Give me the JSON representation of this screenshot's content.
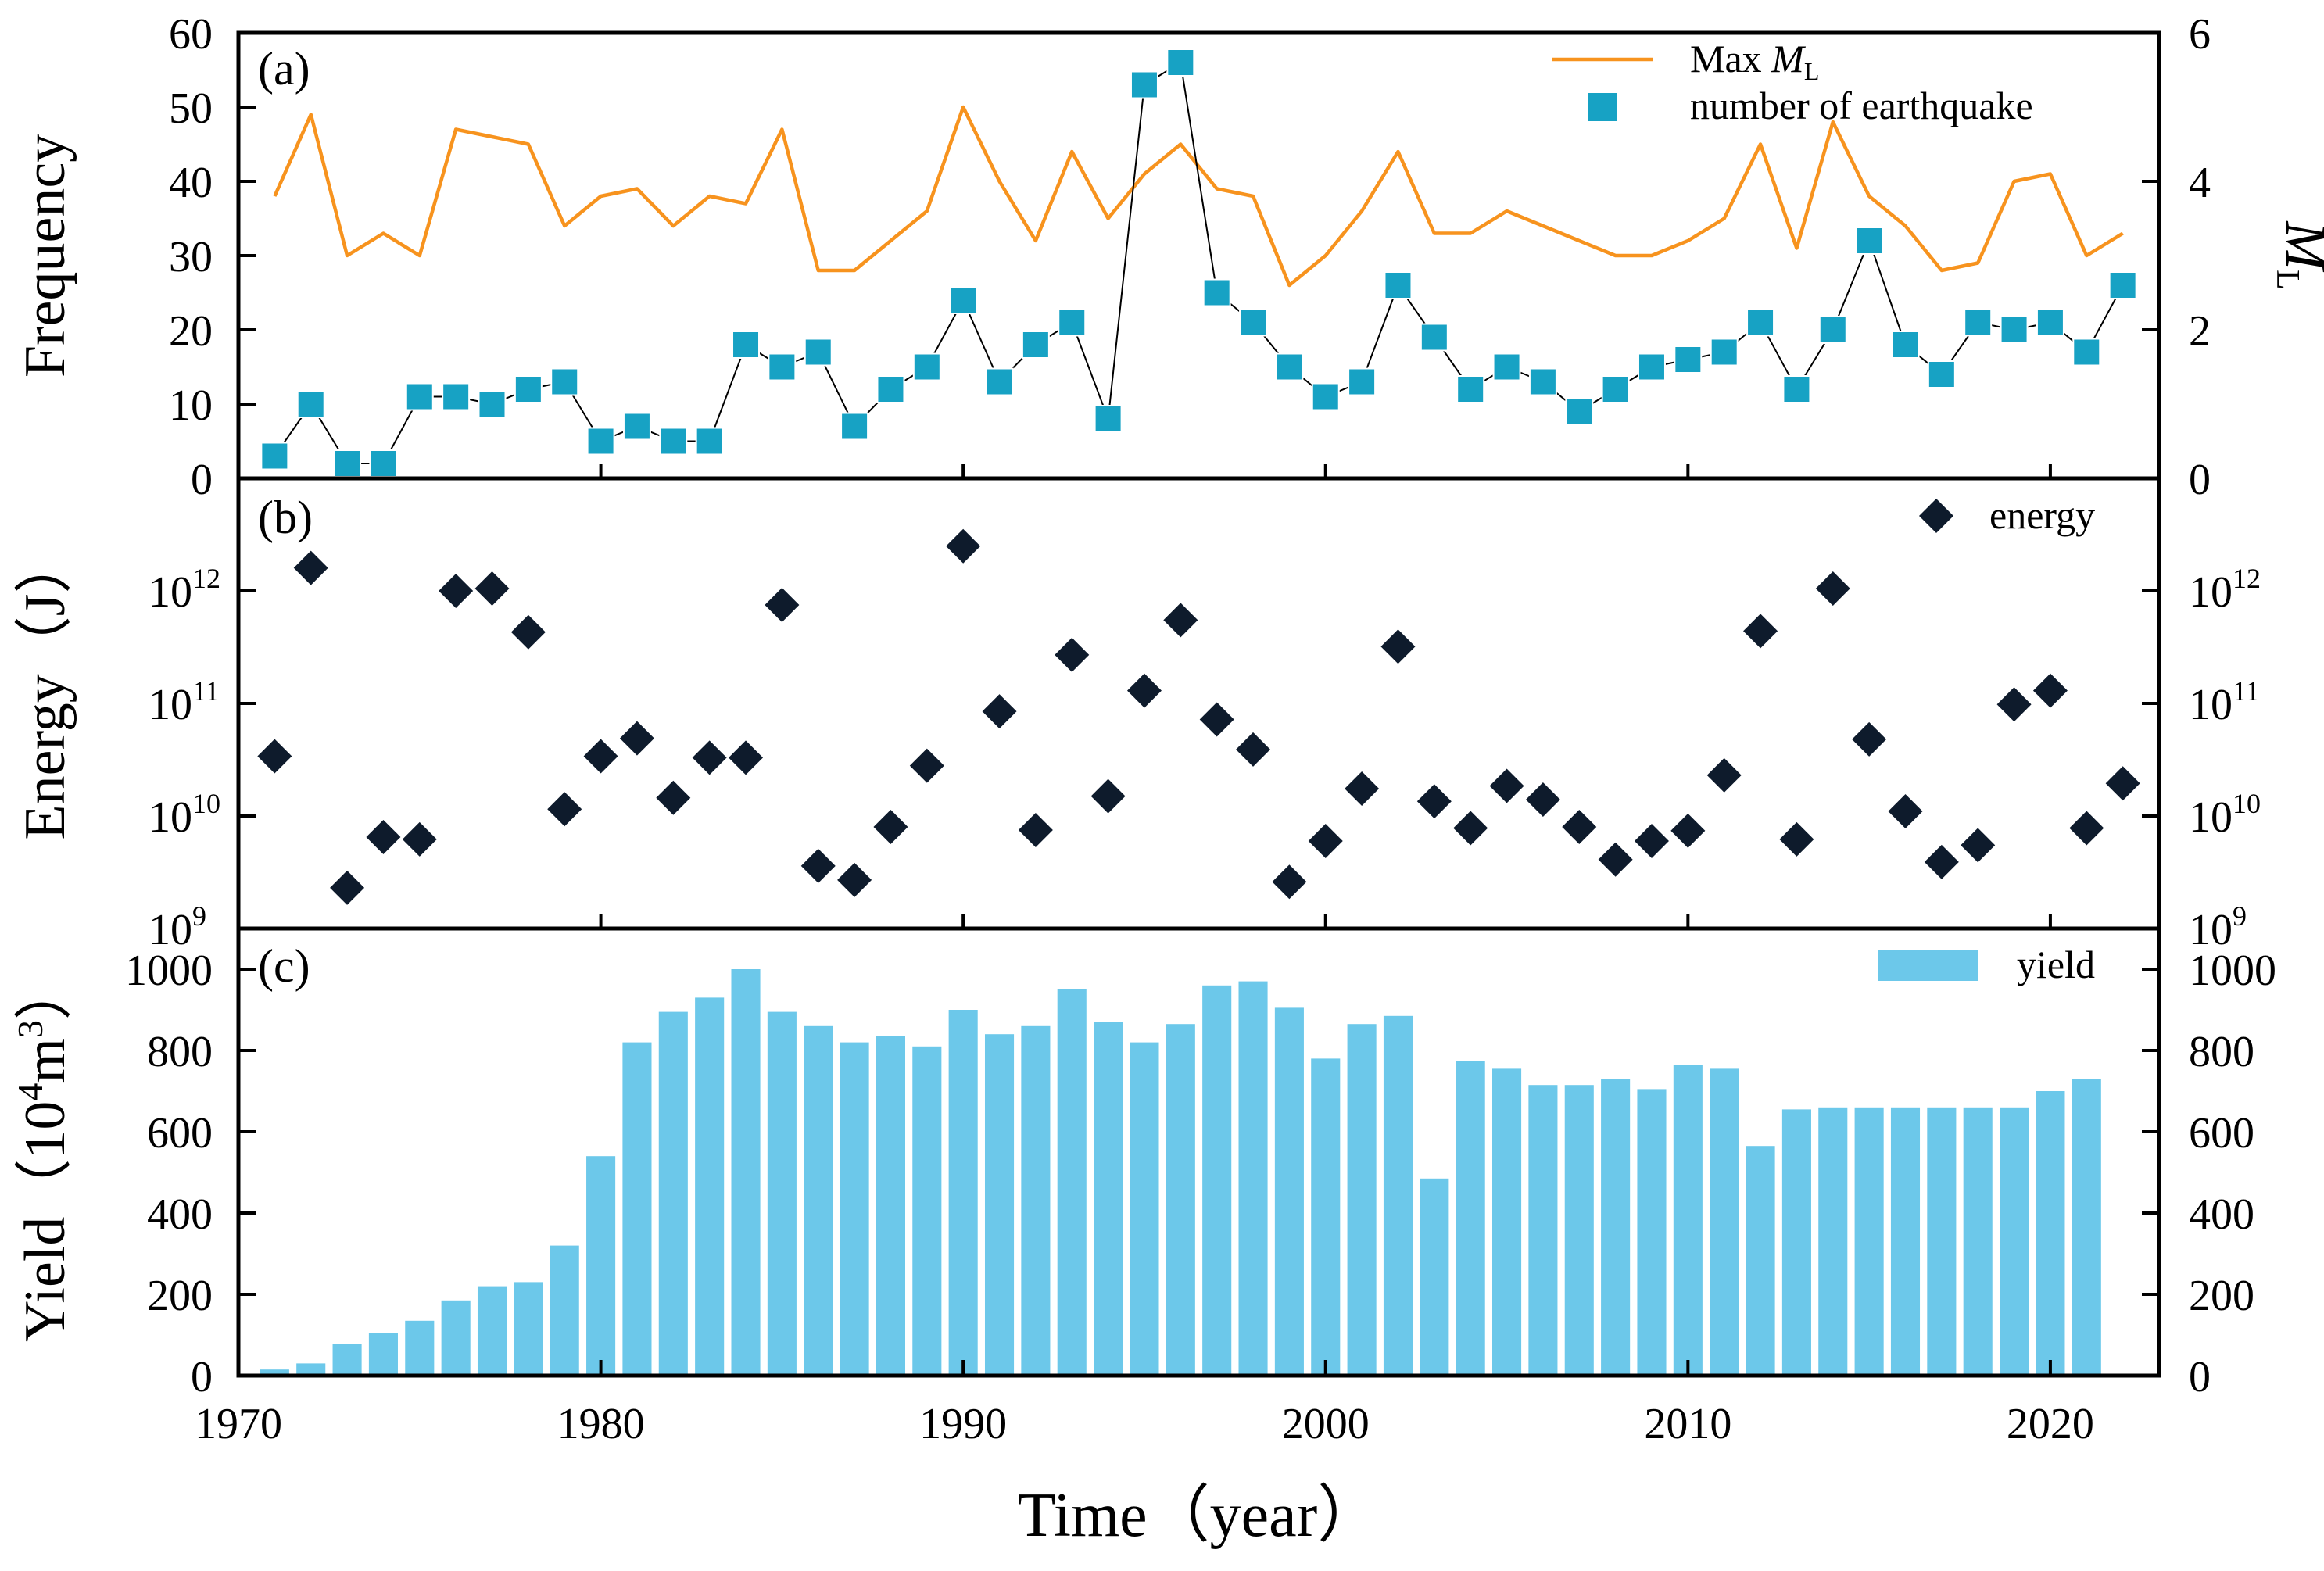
{
  "chart_data": [
    {
      "panel": "(a)",
      "type": "line+scatter",
      "ylabel_left": "Frequency",
      "ylabel_right_symbol": "M",
      "ylabel_right_sub": "L",
      "ylim_left": [
        0,
        60
      ],
      "ylim_right": [
        0,
        6
      ],
      "yticks_left": [
        0,
        10,
        20,
        30,
        40,
        50,
        60
      ],
      "yticks_right": [
        0,
        2,
        4,
        6
      ],
      "legend_position": "top-right",
      "series": [
        {
          "name": "Max M_L",
          "legend_prefix": "Max ",
          "legend_symbol": "M",
          "legend_sub": "L",
          "axis": "right",
          "color": "#F7931E",
          "x": [
            1971,
            1972,
            1973,
            1974,
            1975,
            1976,
            1977,
            1978,
            1979,
            1980,
            1981,
            1982,
            1983,
            1984,
            1985,
            1986,
            1987,
            1988,
            1989,
            1990,
            1991,
            1992,
            1993,
            1994,
            1995,
            1996,
            1997,
            1998,
            1999,
            2000,
            2001,
            2002,
            2003,
            2004,
            2005,
            2006,
            2007,
            2008,
            2009,
            2010,
            2011,
            2012,
            2013,
            2014,
            2015,
            2016,
            2017,
            2018,
            2019,
            2020,
            2021,
            2022
          ],
          "values": [
            3.8,
            4.9,
            3.0,
            3.3,
            3.0,
            4.7,
            4.6,
            4.5,
            3.4,
            3.8,
            3.9,
            3.4,
            3.8,
            3.7,
            4.7,
            2.8,
            2.8,
            3.2,
            3.6,
            5.0,
            4.0,
            3.2,
            4.4,
            3.5,
            4.1,
            4.5,
            3.9,
            3.8,
            2.6,
            3.0,
            3.6,
            4.4,
            3.3,
            3.3,
            3.6,
            3.4,
            3.2,
            3.0,
            3.0,
            3.2,
            3.5,
            4.5,
            3.1,
            4.8,
            3.8,
            3.4,
            2.8,
            2.9,
            4.0,
            4.1,
            3.0,
            3.3
          ]
        },
        {
          "name": "number of earthquake",
          "axis": "left",
          "color": "#17A2C4",
          "x": [
            1971,
            1972,
            1973,
            1974,
            1975,
            1976,
            1977,
            1978,
            1979,
            1980,
            1981,
            1982,
            1983,
            1984,
            1985,
            1986,
            1987,
            1988,
            1989,
            1990,
            1991,
            1992,
            1993,
            1994,
            1995,
            1996,
            1997,
            1998,
            1999,
            2000,
            2001,
            2002,
            2003,
            2004,
            2005,
            2006,
            2007,
            2008,
            2009,
            2010,
            2011,
            2012,
            2013,
            2014,
            2015,
            2016,
            2017,
            2018,
            2019,
            2020,
            2021,
            2022
          ],
          "values": [
            3,
            10,
            2,
            2,
            11,
            11,
            10,
            12,
            13,
            5,
            7,
            5,
            5,
            18,
            15,
            17,
            7,
            12,
            15,
            24,
            13,
            18,
            21,
            8,
            53,
            56,
            25,
            21,
            15,
            11,
            13,
            26,
            19,
            12,
            15,
            13,
            9,
            12,
            15,
            16,
            17,
            21,
            12,
            20,
            32,
            18,
            14,
            21,
            20,
            21,
            17,
            26
          ]
        }
      ]
    },
    {
      "panel": "(b)",
      "type": "scatter",
      "ylabel": "Energy（J）",
      "yscale": "log",
      "ylim": [
        1000000000.0,
        10000000000000.0
      ],
      "ytick_base": "10",
      "ytick_exponents": [
        "9",
        "10",
        "11",
        "12"
      ],
      "legend_position": "top-right",
      "series": [
        {
          "name": "energy",
          "color": "#0E1B2C",
          "x": [
            1971,
            1972,
            1973,
            1974,
            1975,
            1976,
            1977,
            1978,
            1979,
            1980,
            1981,
            1982,
            1983,
            1984,
            1985,
            1986,
            1987,
            1988,
            1989,
            1990,
            1991,
            1992,
            1993,
            1994,
            1995,
            1996,
            1997,
            1998,
            1999,
            2000,
            2001,
            2002,
            2003,
            2004,
            2005,
            2006,
            2007,
            2008,
            2009,
            2010,
            2011,
            2012,
            2013,
            2014,
            2015,
            2016,
            2017,
            2018,
            2019,
            2020,
            2021,
            2022
          ],
          "values": [
            34000000000.0,
            1600000000000.0,
            2300000000.0,
            6500000000.0,
            6200000000.0,
            1000000000000.0,
            1050000000000.0,
            430000000000.0,
            11500000000.0,
            34000000000.0,
            49000000000.0,
            14500000000.0,
            33000000000.0,
            33000000000.0,
            750000000000.0,
            3600000000.0,
            2700000000.0,
            8000000000.0,
            28000000000.0,
            2500000000000.0,
            85000000000.0,
            7500000000.0,
            270000000000.0,
            15000000000.0,
            130000000000.0,
            550000000000.0,
            72000000000.0,
            39000000000.0,
            2600000000.0,
            6000000000.0,
            17500000000.0,
            320000000000.0,
            13500000000.0,
            7800000000.0,
            18500000000.0,
            14000000000.0,
            8000000000.0,
            4100000000.0,
            6000000000.0,
            7400000000.0,
            23000000000.0,
            440000000000.0,
            6200000000.0,
            1050000000000.0,
            48000000000.0,
            11000000000.0,
            3900000000.0,
            5500000000.0,
            98000000000.0,
            130000000000.0,
            7800000000.0,
            19500000000.0
          ]
        }
      ]
    },
    {
      "panel": "(c)",
      "type": "bar",
      "ylabel_main": "Yield（10",
      "ylabel_sup1": "4",
      "ylabel_mid": "m",
      "ylabel_sup2": "3",
      "ylabel_end": "）",
      "ylim": [
        0,
        1100
      ],
      "yticks": [
        0,
        200,
        400,
        600,
        800,
        1000
      ],
      "legend_position": "top-right",
      "series": [
        {
          "name": "yield",
          "color": "#6CC8EA",
          "x": [
            1971,
            1972,
            1973,
            1974,
            1975,
            1976,
            1977,
            1978,
            1979,
            1980,
            1981,
            1982,
            1983,
            1984,
            1985,
            1986,
            1987,
            1988,
            1989,
            1990,
            1991,
            1992,
            1993,
            1994,
            1995,
            1996,
            1997,
            1998,
            1999,
            2000,
            2001,
            2002,
            2003,
            2004,
            2005,
            2006,
            2007,
            2008,
            2009,
            2010,
            2011,
            2012,
            2013,
            2014,
            2015,
            2016,
            2017,
            2018,
            2019,
            2020,
            2021
          ],
          "values": [
            15,
            30,
            78,
            105,
            135,
            185,
            220,
            230,
            320,
            540,
            820,
            895,
            930,
            1000,
            895,
            860,
            820,
            835,
            810,
            900,
            840,
            860,
            950,
            870,
            820,
            865,
            960,
            970,
            905,
            780,
            865,
            885,
            485,
            775,
            755,
            715,
            715,
            730,
            705,
            765,
            755,
            565,
            655,
            660,
            660,
            660,
            660,
            660,
            660,
            700,
            730
          ]
        }
      ]
    }
  ],
  "xaxis": {
    "label": "Time（year）",
    "ticks": [
      1970,
      1980,
      1990,
      2000,
      2010,
      2020
    ],
    "xlim": [
      1970,
      2023
    ]
  }
}
